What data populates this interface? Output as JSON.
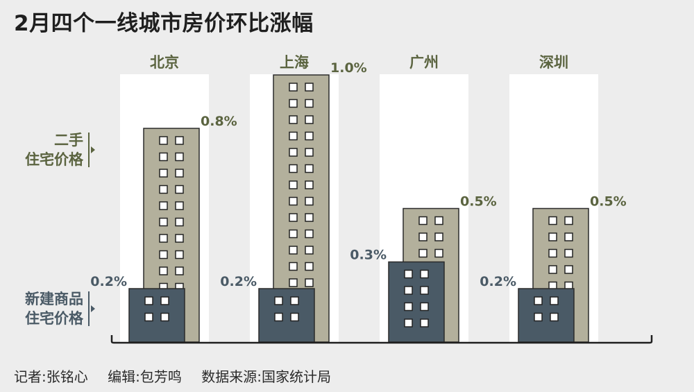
{
  "title": "2月四个一线城市房价环比涨幅",
  "credits": {
    "reporter": "记者:张铭心",
    "editor": "编辑:包芳鸣",
    "source": "数据来源:国家统计局"
  },
  "chart_data": {
    "type": "bar",
    "categories": [
      "北京",
      "上海",
      "广州",
      "深圳"
    ],
    "series": [
      {
        "name": "二手\n住宅价格",
        "values": [
          0.8,
          1.0,
          0.5,
          0.5
        ],
        "labels": [
          "0.8%",
          "1.0%",
          "0.5%",
          "0.5%"
        ]
      },
      {
        "name": "新建商品\n住宅价格",
        "values": [
          0.2,
          0.2,
          0.3,
          0.2
        ],
        "labels": [
          "0.2%",
          "0.2%",
          "0.3%",
          "0.2%"
        ]
      }
    ],
    "unit": "%",
    "ylim": [
      0,
      1.0
    ],
    "colors": {
      "second_hand": "#b3b09c",
      "second_hand_text": "#5b6440",
      "new_home": "#4a5a66",
      "new_home_text": "#4a5a66",
      "panel": "#ffffff",
      "window": "#ffffff"
    },
    "legend_placement": "left",
    "grid": false
  }
}
